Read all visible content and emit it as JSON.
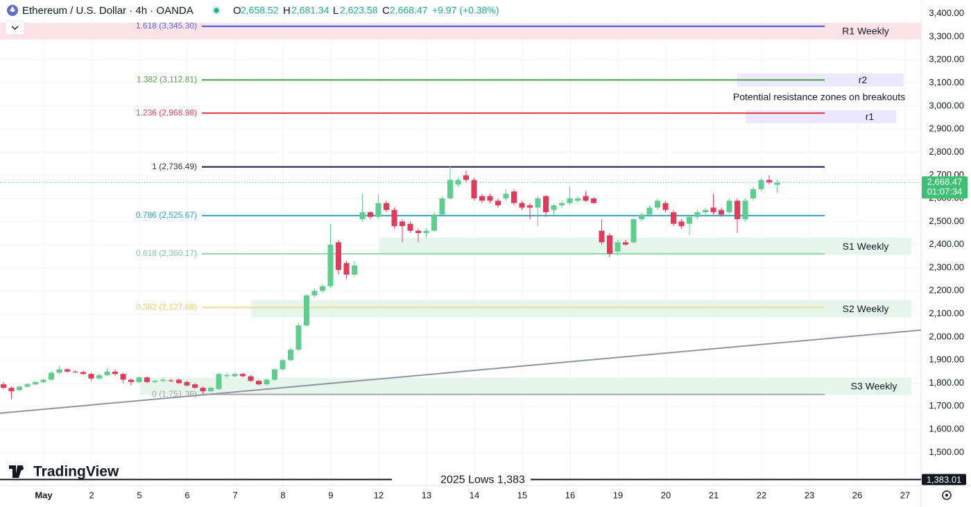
{
  "header": {
    "title": "Ethereum / U.S. Dollar · 4h · OANDA",
    "ohlc": [
      {
        "key": "O",
        "text": "2,658.52"
      },
      {
        "key": "H",
        "text": "2,681.34"
      },
      {
        "key": "L",
        "text": "2,623.58"
      },
      {
        "key": "C",
        "text": "2,668.47"
      }
    ],
    "change": "+9.97 (+0.38%)"
  },
  "brand": "TradingView",
  "chart_data": {
    "type": "candlestick",
    "up_color": "#5dce8e",
    "down_color": "#e3395b",
    "grid": true,
    "ylim": [
      1357,
      3459
    ],
    "yticks": [
      {
        "value": 1500,
        "label": "1,500.00"
      },
      {
        "value": 1600,
        "label": "1,600.00"
      },
      {
        "value": 1700,
        "label": "1,700.00"
      },
      {
        "value": 1800,
        "label": "1,800.00"
      },
      {
        "value": 1900,
        "label": "1,900.00"
      },
      {
        "value": 2000,
        "label": "2,000.00"
      },
      {
        "value": 2100,
        "label": "2,100.00"
      },
      {
        "value": 2200,
        "label": "2,200.00"
      },
      {
        "value": 2300,
        "label": "2,300.00"
      },
      {
        "value": 2400,
        "label": "2,400.00"
      },
      {
        "value": 2500,
        "label": "2,500.00"
      },
      {
        "value": 2600,
        "label": "2,600.00"
      },
      {
        "value": 2700,
        "label": "2,700.00"
      },
      {
        "value": 2800,
        "label": "2,800.00"
      },
      {
        "value": 2900,
        "label": "2,900.00"
      },
      {
        "value": 3000,
        "label": "3,000.00"
      },
      {
        "value": 3100,
        "label": "3,100.00"
      },
      {
        "value": 3200,
        "label": "3,200.00"
      },
      {
        "value": 3300,
        "label": "3,300.00"
      },
      {
        "value": 3400,
        "label": "3,400.00"
      }
    ],
    "x_labels": [
      "May",
      "2",
      "5",
      "6",
      "7",
      "8",
      "9",
      "12",
      "13",
      "14",
      "15",
      "16",
      "19",
      "20",
      "21",
      "22",
      "23",
      "26",
      "27"
    ],
    "candles": [
      {
        "open": 1795,
        "high": 1805,
        "low": 1775,
        "close": 1780
      },
      {
        "open": 1780,
        "high": 1785,
        "low": 1730,
        "close": 1765
      },
      {
        "open": 1770,
        "high": 1790,
        "low": 1765,
        "close": 1785
      },
      {
        "open": 1785,
        "high": 1800,
        "low": 1780,
        "close": 1795
      },
      {
        "open": 1795,
        "high": 1810,
        "low": 1790,
        "close": 1805
      },
      {
        "open": 1805,
        "high": 1820,
        "low": 1800,
        "close": 1815
      },
      {
        "open": 1815,
        "high": 1855,
        "low": 1810,
        "close": 1845
      },
      {
        "open": 1845,
        "high": 1875,
        "low": 1840,
        "close": 1860
      },
      {
        "open": 1860,
        "high": 1865,
        "low": 1845,
        "close": 1850
      },
      {
        "open": 1850,
        "high": 1855,
        "low": 1845,
        "close": 1848
      },
      {
        "open": 1848,
        "high": 1855,
        "low": 1835,
        "close": 1840
      },
      {
        "open": 1840,
        "high": 1845,
        "low": 1810,
        "close": 1820
      },
      {
        "open": 1820,
        "high": 1840,
        "low": 1815,
        "close": 1835
      },
      {
        "open": 1835,
        "high": 1865,
        "low": 1830,
        "close": 1850
      },
      {
        "open": 1850,
        "high": 1860,
        "low": 1835,
        "close": 1840
      },
      {
        "open": 1840,
        "high": 1845,
        "low": 1800,
        "close": 1815
      },
      {
        "open": 1815,
        "high": 1820,
        "low": 1790,
        "close": 1805
      },
      {
        "open": 1805,
        "high": 1830,
        "low": 1800,
        "close": 1825
      },
      {
        "open": 1825,
        "high": 1830,
        "low": 1800,
        "close": 1805
      },
      {
        "open": 1805,
        "high": 1815,
        "low": 1800,
        "close": 1810
      },
      {
        "open": 1810,
        "high": 1825,
        "low": 1805,
        "close": 1815
      },
      {
        "open": 1812,
        "high": 1818,
        "low": 1805,
        "close": 1810
      },
      {
        "open": 1815,
        "high": 1820,
        "low": 1795,
        "close": 1800
      },
      {
        "open": 1805,
        "high": 1810,
        "low": 1785,
        "close": 1790
      },
      {
        "open": 1795,
        "high": 1800,
        "low": 1775,
        "close": 1780
      },
      {
        "open": 1780,
        "high": 1785,
        "low": 1755,
        "close": 1765
      },
      {
        "open": 1765,
        "high": 1785,
        "low": 1760,
        "close": 1780
      },
      {
        "open": 1775,
        "high": 1845,
        "low": 1770,
        "close": 1840
      },
      {
        "open": 1830,
        "high": 1845,
        "low": 1820,
        "close": 1835
      },
      {
        "open": 1830,
        "high": 1845,
        "low": 1825,
        "close": 1840
      },
      {
        "open": 1840,
        "high": 1845,
        "low": 1825,
        "close": 1830
      },
      {
        "open": 1830,
        "high": 1835,
        "low": 1805,
        "close": 1810
      },
      {
        "open": 1810,
        "high": 1815,
        "low": 1790,
        "close": 1795
      },
      {
        "open": 1795,
        "high": 1820,
        "low": 1790,
        "close": 1815
      },
      {
        "open": 1815,
        "high": 1865,
        "low": 1810,
        "close": 1860
      },
      {
        "open": 1860,
        "high": 1905,
        "low": 1855,
        "close": 1900
      },
      {
        "open": 1900,
        "high": 1955,
        "low": 1895,
        "close": 1945
      },
      {
        "open": 1945,
        "high": 2060,
        "low": 1940,
        "close": 2050
      },
      {
        "open": 2050,
        "high": 2185,
        "low": 2045,
        "close": 2180
      },
      {
        "open": 2180,
        "high": 2210,
        "low": 2170,
        "close": 2200
      },
      {
        "open": 2200,
        "high": 2230,
        "low": 2190,
        "close": 2220
      },
      {
        "open": 2220,
        "high": 2490,
        "low": 2210,
        "close": 2400
      },
      {
        "open": 2410,
        "high": 2420,
        "low": 2270,
        "close": 2290
      },
      {
        "open": 2320,
        "high": 2330,
        "low": 2250,
        "close": 2270
      },
      {
        "open": 2270,
        "high": 2330,
        "low": 2260,
        "close": 2310
      },
      {
        "open": 2510,
        "high": 2620,
        "low": 2500,
        "close": 2540
      },
      {
        "open": 2540,
        "high": 2545,
        "low": 2510,
        "close": 2520
      },
      {
        "open": 2520,
        "high": 2620,
        "low": 2510,
        "close": 2580
      },
      {
        "open": 2580,
        "high": 2590,
        "low": 2540,
        "close": 2550
      },
      {
        "open": 2550,
        "high": 2560,
        "low": 2470,
        "close": 2480
      },
      {
        "open": 2500,
        "high": 2510,
        "low": 2410,
        "close": 2480
      },
      {
        "open": 2490,
        "high": 2500,
        "low": 2450,
        "close": 2460
      },
      {
        "open": 2460,
        "high": 2470,
        "low": 2410,
        "close": 2450
      },
      {
        "open": 2450,
        "high": 2470,
        "low": 2430,
        "close": 2460
      },
      {
        "open": 2460,
        "high": 2540,
        "low": 2455,
        "close": 2530
      },
      {
        "open": 2530,
        "high": 2610,
        "low": 2525,
        "close": 2600
      },
      {
        "open": 2600,
        "high": 2740,
        "low": 2595,
        "close": 2680
      },
      {
        "open": 2660,
        "high": 2690,
        "low": 2650,
        "close": 2680
      },
      {
        "open": 2700,
        "high": 2720,
        "low": 2670,
        "close": 2680
      },
      {
        "open": 2680,
        "high": 2690,
        "low": 2590,
        "close": 2600
      },
      {
        "open": 2610,
        "high": 2620,
        "low": 2580,
        "close": 2590
      },
      {
        "open": 2610,
        "high": 2620,
        "low": 2580,
        "close": 2590
      },
      {
        "open": 2590,
        "high": 2600,
        "low": 2560,
        "close": 2570
      },
      {
        "open": 2600,
        "high": 2640,
        "low": 2590,
        "close": 2620
      },
      {
        "open": 2630,
        "high": 2640,
        "low": 2570,
        "close": 2580
      },
      {
        "open": 2580,
        "high": 2590,
        "low": 2550,
        "close": 2560
      },
      {
        "open": 2570,
        "high": 2580,
        "low": 2510,
        "close": 2560
      },
      {
        "open": 2560,
        "high": 2610,
        "low": 2480,
        "close": 2600
      },
      {
        "open": 2610,
        "high": 2615,
        "low": 2520,
        "close": 2540
      },
      {
        "open": 2550,
        "high": 2575,
        "low": 2530,
        "close": 2570
      },
      {
        "open": 2570,
        "high": 2590,
        "low": 2560,
        "close": 2580
      },
      {
        "open": 2580,
        "high": 2650,
        "low": 2570,
        "close": 2600
      },
      {
        "open": 2590,
        "high": 2610,
        "low": 2580,
        "close": 2600
      },
      {
        "open": 2610,
        "high": 2630,
        "low": 2585,
        "close": 2590
      },
      {
        "open": 2600,
        "high": 2605,
        "low": 2575,
        "close": 2580
      },
      {
        "open": 2460,
        "high": 2510,
        "low": 2400,
        "close": 2410
      },
      {
        "open": 2440,
        "high": 2450,
        "low": 2345,
        "close": 2360
      },
      {
        "open": 2370,
        "high": 2420,
        "low": 2355,
        "close": 2410
      },
      {
        "open": 2410,
        "high": 2420,
        "low": 2395,
        "close": 2400
      },
      {
        "open": 2410,
        "high": 2515,
        "low": 2405,
        "close": 2510
      },
      {
        "open": 2510,
        "high": 2540,
        "low": 2500,
        "close": 2530
      },
      {
        "open": 2530,
        "high": 2570,
        "low": 2520,
        "close": 2560
      },
      {
        "open": 2560,
        "high": 2600,
        "low": 2550,
        "close": 2590
      },
      {
        "open": 2580,
        "high": 2590,
        "low": 2540,
        "close": 2550
      },
      {
        "open": 2540,
        "high": 2550,
        "low": 2480,
        "close": 2490
      },
      {
        "open": 2500,
        "high": 2510,
        "low": 2470,
        "close": 2480
      },
      {
        "open": 2490,
        "high": 2525,
        "low": 2440,
        "close": 2520
      },
      {
        "open": 2520,
        "high": 2550,
        "low": 2510,
        "close": 2540
      },
      {
        "open": 2540,
        "high": 2560,
        "low": 2520,
        "close": 2550
      },
      {
        "open": 2560,
        "high": 2620,
        "low": 2530,
        "close": 2540
      },
      {
        "open": 2550,
        "high": 2560,
        "low": 2520,
        "close": 2530
      },
      {
        "open": 2540,
        "high": 2600,
        "low": 2530,
        "close": 2590
      },
      {
        "open": 2590,
        "high": 2600,
        "low": 2450,
        "close": 2510
      },
      {
        "open": 2510,
        "high": 2600,
        "low": 2500,
        "close": 2590
      },
      {
        "open": 2600,
        "high": 2650,
        "low": 2590,
        "close": 2640
      },
      {
        "open": 2640,
        "high": 2690,
        "low": 2630,
        "close": 2680
      },
      {
        "open": 2680,
        "high": 2700,
        "low": 2660,
        "close": 2670
      },
      {
        "open": 2658.52,
        "high": 2681.34,
        "low": 2623.58,
        "close": 2668.47
      }
    ],
    "fib_levels": [
      {
        "label": "1.618 (3,345.30)",
        "value": 3345.3,
        "color": "#3d52e0",
        "label_color": "#5a6ad6"
      },
      {
        "label": "1.382 (3,112.81)",
        "value": 3112.81,
        "color": "#43a047",
        "label_color": "#5b9a4b"
      },
      {
        "label": "1.236 (2,968.98)",
        "value": 2968.98,
        "color": "#e0364a",
        "label_color": "#d9485a"
      },
      {
        "label": "1 (2,736.49)",
        "value": 2736.49,
        "color": "#141a4a",
        "label_color": "#333"
      },
      {
        "label": "0.786 (2,525.67)",
        "value": 2525.67,
        "color": "#2ca3c6",
        "label_color": "#2f9fc2"
      },
      {
        "label": "0.618 (2,360.17)",
        "value": 2360.17,
        "color": "#8fd8ab",
        "label_color": "#7dc79d"
      },
      {
        "label": "0.382 (2,127.68)",
        "value": 2127.68,
        "color": "#f2dc8a",
        "label_color": "#e8cc70"
      },
      {
        "label": "0 (1,751.36)",
        "value": 1751.36,
        "color": "#a8a8a8",
        "label_color": "#a0a0a0"
      }
    ],
    "zones": [
      {
        "label": "R1 Weekly",
        "low": 3288,
        "high": 3360,
        "color": "#fde3e8"
      },
      {
        "label": "r2",
        "low": 3084,
        "high": 3141,
        "color": "#ece8fd"
      },
      {
        "label": "r1",
        "low": 2925,
        "high": 2982,
        "color": "#ece8fd"
      },
      {
        "label": "S1 Weekly",
        "low": 2355,
        "high": 2430,
        "color": "#e6f6ec"
      },
      {
        "label": "S2 Weekly",
        "low": 2085,
        "high": 2160,
        "color": "#e6f6ec"
      },
      {
        "label": "S3 Weekly",
        "low": 1749,
        "high": 1824,
        "color": "#e6f6ec"
      }
    ],
    "trendline": {
      "start": 1670,
      "end": 2030,
      "color": "#8c95a3"
    },
    "annotation": "Potential resistance zones on breakouts",
    "lows": {
      "label": "2025 Lows 1,383",
      "value": 1383.01,
      "tag": "1,383.01"
    },
    "last_price": {
      "value": 2668.47,
      "label": "2,668.47",
      "countdown": "01:07:34"
    }
  }
}
